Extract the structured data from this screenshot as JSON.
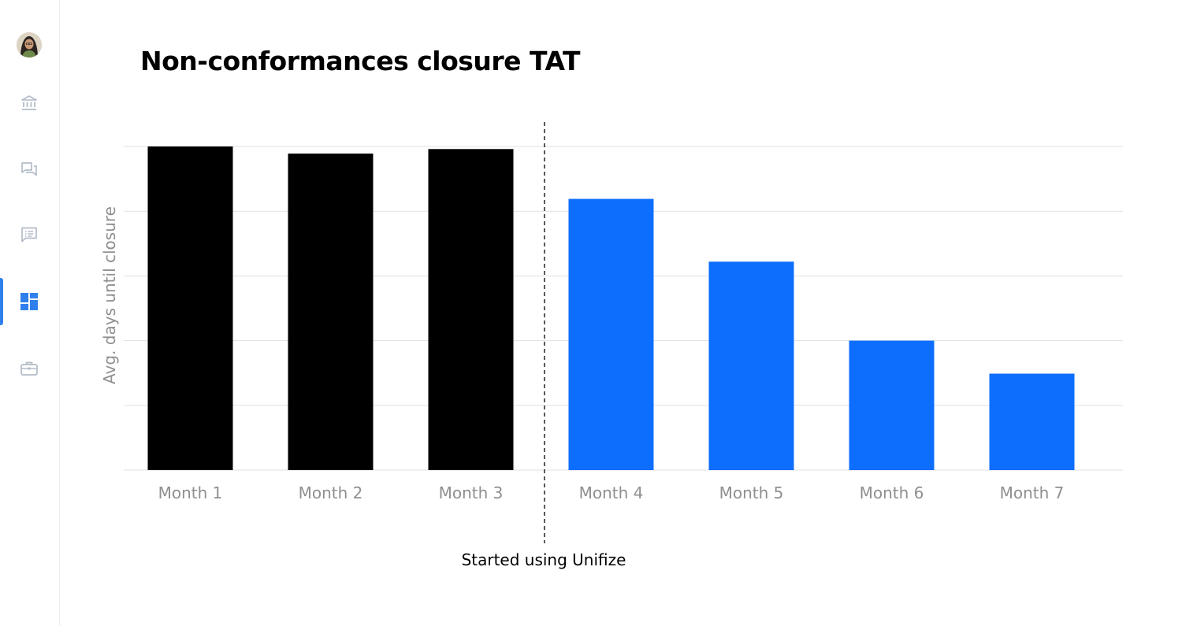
{
  "sidebar": {
    "items": [
      {
        "icon": "bank-icon",
        "active": false
      },
      {
        "icon": "chat-icon",
        "active": false
      },
      {
        "icon": "message-list-icon",
        "active": false
      },
      {
        "icon": "dashboard-icon",
        "active": true
      },
      {
        "icon": "briefcase-icon",
        "active": false
      }
    ]
  },
  "chart_data": {
    "type": "bar",
    "title": "Non-conformances closure TAT",
    "ylabel": "Avg. days until closure",
    "xlabel": "",
    "categories": [
      "Month 1",
      "Month 2",
      "Month 3",
      "Month 4",
      "Month 5",
      "Month 6",
      "Month 7"
    ],
    "values": [
      5.0,
      4.89,
      4.96,
      4.19,
      3.22,
      2.0,
      1.49
    ],
    "ylim": [
      0,
      5
    ],
    "grid": true,
    "bar_colors": [
      "#000000",
      "#000000",
      "#000000",
      "#0d6efd",
      "#0d6efd",
      "#0d6efd",
      "#0d6efd"
    ],
    "annotation": {
      "text": "Started using Unifize",
      "between": [
        "Month 3",
        "Month 4"
      ]
    }
  }
}
